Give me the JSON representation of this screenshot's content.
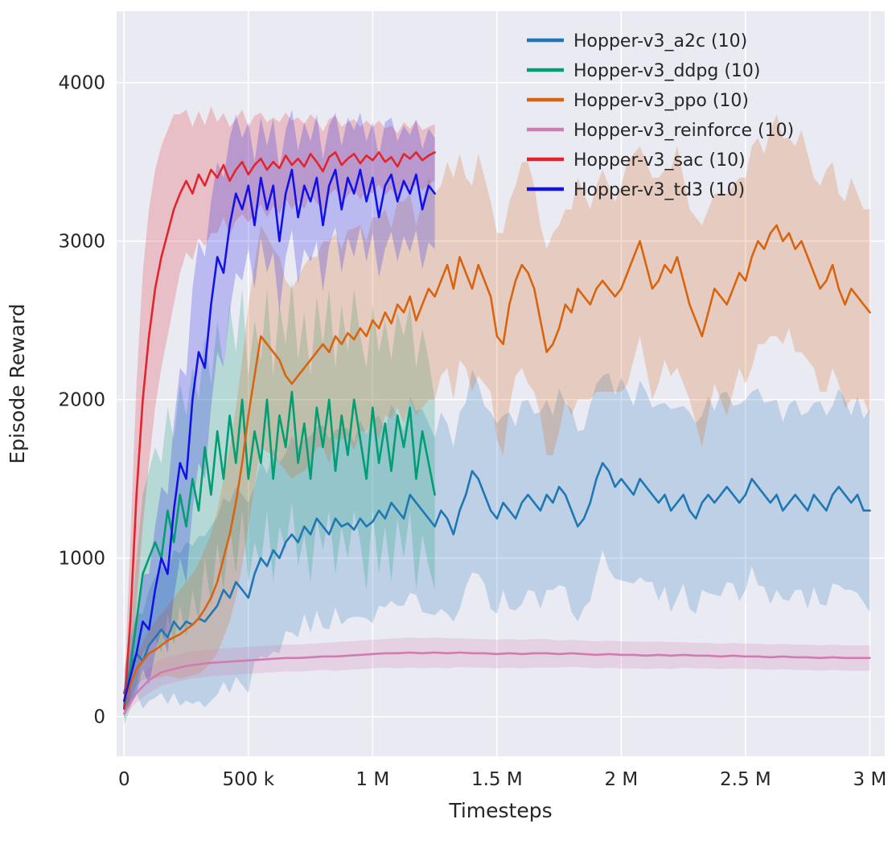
{
  "chart_data": {
    "type": "line",
    "title": "",
    "xlabel": "Timesteps",
    "ylabel": "Episode Reward",
    "xlim": [
      -30000,
      3060000
    ],
    "ylim": [
      -250,
      4450
    ],
    "grid": true,
    "background": "#eaeaf2",
    "grid_color": "#ffffff",
    "text_color": "#262626",
    "legend_position": "upper right",
    "x_ticks": [
      {
        "v": 0,
        "label": "0"
      },
      {
        "v": 500000,
        "label": "500 k"
      },
      {
        "v": 1000000,
        "label": "1 M"
      },
      {
        "v": 1500000,
        "label": "1.5 M"
      },
      {
        "v": 2000000,
        "label": "2 M"
      },
      {
        "v": 2500000,
        "label": "2.5 M"
      },
      {
        "v": 3000000,
        "label": "3 M"
      }
    ],
    "y_ticks": [
      {
        "v": 0,
        "label": "0"
      },
      {
        "v": 1000,
        "label": "1000"
      },
      {
        "v": 2000,
        "label": "2000"
      },
      {
        "v": 3000,
        "label": "3000"
      },
      {
        "v": 4000,
        "label": "4000"
      }
    ],
    "series": [
      {
        "name": "Hopper-v3_a2c (10)",
        "color": "#1f77b4",
        "x_step": 25000,
        "mean": [
          150,
          300,
          400,
          350,
          450,
          500,
          550,
          500,
          600,
          550,
          600,
          580,
          620,
          600,
          650,
          700,
          800,
          750,
          850,
          800,
          750,
          900,
          1000,
          950,
          1050,
          1000,
          1100,
          1150,
          1100,
          1200,
          1150,
          1250,
          1200,
          1150,
          1250,
          1200,
          1220,
          1180,
          1250,
          1200,
          1230,
          1300,
          1250,
          1350,
          1300,
          1250,
          1400,
          1350,
          1300,
          1250,
          1200,
          1300,
          1250,
          1150,
          1300,
          1400,
          1550,
          1500,
          1400,
          1300,
          1250,
          1350,
          1300,
          1250,
          1350,
          1400,
          1350,
          1300,
          1400,
          1350,
          1450,
          1400,
          1300,
          1200,
          1250,
          1350,
          1500,
          1600,
          1550,
          1450,
          1500,
          1450,
          1400,
          1500,
          1450,
          1400,
          1350,
          1400,
          1300,
          1350,
          1400,
          1300,
          1250,
          1350,
          1400,
          1350,
          1400,
          1450,
          1400,
          1350,
          1400,
          1500,
          1450,
          1400,
          1350,
          1400,
          1300,
          1350,
          1400,
          1350,
          1300,
          1400,
          1350,
          1300,
          1400,
          1450,
          1400,
          1350,
          1400,
          1300,
          1300
        ],
        "band": [
          150,
          200,
          250,
          300,
          350,
          380,
          400,
          420,
          450,
          480,
          500,
          500,
          520,
          540,
          550,
          560,
          580,
          600,
          600,
          600,
          600,
          550,
          620,
          580,
          640,
          600,
          560,
          620,
          600,
          550,
          620,
          580,
          640,
          600,
          560,
          620,
          600,
          550,
          620,
          580,
          640,
          600,
          560,
          620,
          600,
          550,
          620,
          580,
          640,
          600,
          560,
          620,
          600,
          550,
          620,
          580,
          640,
          600,
          560,
          620,
          600,
          550,
          620,
          580,
          640,
          600,
          560,
          620,
          600,
          550,
          620,
          580,
          640,
          600,
          560,
          620,
          600,
          550,
          620,
          580,
          640,
          600,
          560,
          620,
          600,
          550,
          620,
          580,
          640,
          600,
          560,
          620,
          600,
          550,
          620,
          580,
          640,
          600,
          560,
          620,
          600,
          550,
          620,
          580,
          640,
          600,
          560,
          620,
          600,
          550,
          620,
          580,
          640,
          600,
          560,
          620,
          600,
          550,
          620,
          580,
          640
        ]
      },
      {
        "name": "Hopper-v3_ddpg (10)",
        "color": "#029e73",
        "x_step": 25000,
        "mean": [
          50,
          300,
          600,
          900,
          1000,
          1100,
          1000,
          1300,
          1100,
          1400,
          1200,
          1500,
          1300,
          1700,
          1400,
          1800,
          1500,
          1900,
          1600,
          2000,
          1500,
          1800,
          1600,
          2000,
          1500,
          1900,
          1700,
          2050,
          1600,
          1850,
          1500,
          1950,
          1700,
          2000,
          1550,
          1900,
          1650,
          2000,
          1750,
          1500,
          1950,
          1600,
          1850,
          1550,
          1900,
          1700,
          1950,
          1500,
          1800,
          1600,
          1400
        ],
        "band": [
          100,
          250,
          400,
          500,
          550,
          600,
          600,
          650,
          650,
          700,
          700,
          700,
          700,
          700,
          700,
          700,
          700,
          700,
          700,
          700,
          650,
          700,
          650,
          700,
          650,
          700,
          650,
          700,
          650,
          700,
          650,
          700,
          650,
          700,
          650,
          700,
          650,
          700,
          650,
          700,
          650,
          700,
          650,
          700,
          650,
          700,
          650,
          700,
          650,
          650,
          600
        ]
      },
      {
        "name": "Hopper-v3_ppo (10)",
        "color": "#d9640f",
        "x_step": 25000,
        "mean": [
          100,
          200,
          300,
          350,
          400,
          420,
          450,
          480,
          500,
          520,
          550,
          580,
          620,
          680,
          750,
          850,
          1000,
          1150,
          1350,
          1600,
          1900,
          2150,
          2400,
          2350,
          2300,
          2250,
          2150,
          2100,
          2150,
          2200,
          2250,
          2300,
          2350,
          2300,
          2400,
          2350,
          2420,
          2380,
          2450,
          2400,
          2500,
          2450,
          2550,
          2480,
          2600,
          2550,
          2650,
          2500,
          2600,
          2700,
          2650,
          2750,
          2850,
          2700,
          2900,
          2800,
          2700,
          2850,
          2750,
          2650,
          2400,
          2350,
          2600,
          2750,
          2850,
          2800,
          2700,
          2500,
          2300,
          2350,
          2450,
          2600,
          2550,
          2700,
          2650,
          2600,
          2700,
          2750,
          2700,
          2650,
          2700,
          2800,
          2900,
          3000,
          2850,
          2700,
          2750,
          2850,
          2800,
          2900,
          2750,
          2600,
          2500,
          2400,
          2550,
          2700,
          2650,
          2600,
          2700,
          2800,
          2750,
          2900,
          3000,
          2950,
          3050,
          3100,
          3000,
          3050,
          2950,
          3000,
          2900,
          2800,
          2700,
          2750,
          2850,
          2700,
          2600,
          2700,
          2650,
          2600,
          2550
        ],
        "band": [
          50,
          80,
          100,
          120,
          150,
          180,
          200,
          220,
          250,
          280,
          300,
          320,
          350,
          380,
          400,
          450,
          500,
          550,
          600,
          650,
          700,
          700,
          700,
          680,
          650,
          650,
          600,
          600,
          620,
          650,
          650,
          600,
          650,
          700,
          650,
          600,
          650,
          700,
          650,
          600,
          650,
          700,
          650,
          600,
          650,
          700,
          650,
          600,
          650,
          700,
          650,
          600,
          650,
          700,
          650,
          600,
          650,
          700,
          650,
          600,
          650,
          700,
          650,
          600,
          650,
          700,
          650,
          600,
          650,
          700,
          650,
          600,
          650,
          700,
          650,
          600,
          650,
          700,
          650,
          600,
          650,
          700,
          650,
          600,
          650,
          700,
          650,
          600,
          650,
          700,
          650,
          600,
          650,
          700,
          650,
          600,
          650,
          700,
          650,
          600,
          650,
          700,
          650,
          600,
          650,
          700,
          650,
          600,
          650,
          700,
          650,
          600,
          650,
          700,
          650,
          600,
          650,
          700,
          650,
          600,
          650
        ]
      },
      {
        "name": "Hopper-v3_reinforce (10)",
        "color": "#d17cb0",
        "x_step": 50000,
        "mean": [
          20,
          150,
          230,
          280,
          300,
          320,
          330,
          340,
          345,
          350,
          355,
          360,
          365,
          370,
          370,
          375,
          380,
          380,
          385,
          390,
          395,
          400,
          400,
          405,
          400,
          405,
          400,
          405,
          400,
          400,
          395,
          400,
          395,
          400,
          400,
          395,
          400,
          395,
          390,
          395,
          390,
          390,
          385,
          390,
          385,
          390,
          385,
          385,
          380,
          385,
          380,
          380,
          375,
          380,
          375,
          375,
          370,
          375,
          370,
          370,
          370
        ],
        "band": [
          15,
          60,
          80,
          85,
          85,
          85,
          85,
          85,
          85,
          85,
          85,
          85,
          85,
          85,
          85,
          85,
          85,
          90,
          90,
          90,
          90,
          90,
          95,
          95,
          95,
          95,
          95,
          90,
          90,
          90,
          90,
          90,
          90,
          90,
          90,
          85,
          85,
          85,
          85,
          85,
          85,
          85,
          85,
          85,
          85,
          80,
          80,
          80,
          80,
          80,
          80,
          80,
          80,
          80,
          80,
          80,
          80,
          80,
          80,
          80,
          80
        ]
      },
      {
        "name": "Hopper-v3_sac (10)",
        "color": "#e2242c",
        "x_step": 25000,
        "mean": [
          50,
          600,
          1400,
          2000,
          2400,
          2700,
          2900,
          3050,
          3200,
          3300,
          3380,
          3300,
          3420,
          3350,
          3450,
          3400,
          3480,
          3380,
          3450,
          3500,
          3420,
          3480,
          3520,
          3450,
          3500,
          3460,
          3540,
          3480,
          3520,
          3470,
          3550,
          3500,
          3440,
          3530,
          3560,
          3480,
          3520,
          3550,
          3490,
          3540,
          3510,
          3560,
          3500,
          3530,
          3470,
          3550,
          3520,
          3560,
          3510,
          3540,
          3560
        ],
        "band": [
          60,
          500,
          700,
          800,
          800,
          750,
          700,
          650,
          600,
          500,
          450,
          420,
          400,
          380,
          400,
          350,
          330,
          340,
          320,
          330,
          300,
          310,
          290,
          300,
          280,
          290,
          270,
          280,
          260,
          270,
          250,
          260,
          250,
          240,
          230,
          240,
          230,
          220,
          230,
          220,
          210,
          200,
          210,
          200,
          210,
          200,
          190,
          200,
          190,
          180,
          180
        ]
      },
      {
        "name": "Hopper-v3_td3 (10)",
        "color": "#1212e8",
        "x_step": 25000,
        "mean": [
          100,
          250,
          400,
          600,
          550,
          800,
          1000,
          900,
          1300,
          1600,
          1500,
          2000,
          2300,
          2200,
          2600,
          2900,
          2800,
          3100,
          3300,
          3200,
          3350,
          3100,
          3400,
          3200,
          3350,
          3000,
          3300,
          3450,
          3150,
          3350,
          3250,
          3400,
          3100,
          3350,
          3450,
          3200,
          3400,
          3300,
          3450,
          3250,
          3400,
          3150,
          3350,
          3420,
          3250,
          3380,
          3300,
          3420,
          3200,
          3350,
          3300
        ],
        "band": [
          100,
          150,
          250,
          300,
          350,
          400,
          450,
          500,
          550,
          600,
          650,
          700,
          700,
          700,
          650,
          600,
          600,
          550,
          500,
          450,
          400,
          400,
          380,
          400,
          420,
          450,
          400,
          380,
          420,
          400,
          380,
          400,
          420,
          380,
          360,
          400,
          380,
          400,
          360,
          380,
          350,
          380,
          400,
          360,
          380,
          350,
          370,
          350,
          380,
          360,
          350
        ]
      }
    ]
  }
}
